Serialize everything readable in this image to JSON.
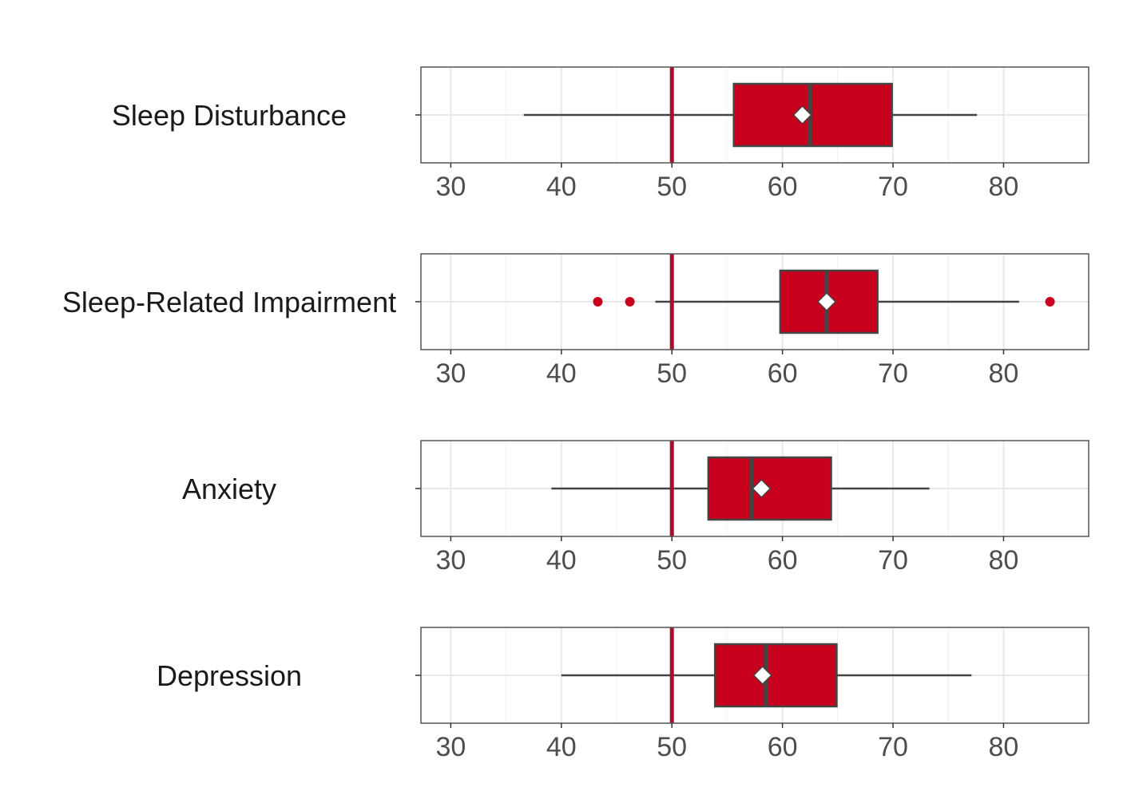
{
  "chart_data": {
    "type": "boxplot",
    "xlim": [
      27.3,
      87.7
    ],
    "x_ticks": [
      30,
      40,
      50,
      60,
      70,
      80
    ],
    "x_tick_labels": [
      "30",
      "40",
      "50",
      "60",
      "70",
      "80"
    ],
    "grid": true,
    "reference_line": {
      "x": 50
    },
    "fill_color": "#c8001e",
    "box_edge_color": "#444444",
    "mean_marker": "white-diamond",
    "panels": [
      {
        "label": "Sleep Disturbance",
        "box": {
          "whisker_low": 36.6,
          "q1": 55.6,
          "median": 62.5,
          "q3": 69.9,
          "whisker_high": 77.6
        },
        "mean": 61.8,
        "outliers": []
      },
      {
        "label": "Sleep-Related Impairment",
        "box": {
          "whisker_low": 48.5,
          "q1": 59.8,
          "median": 64.0,
          "q3": 68.6,
          "whisker_high": 81.4
        },
        "mean": 64.0,
        "outliers": [
          43.3,
          46.2,
          84.2
        ]
      },
      {
        "label": "Anxiety",
        "box": {
          "whisker_low": 39.1,
          "q1": 53.3,
          "median": 57.2,
          "q3": 64.4,
          "whisker_high": 73.3
        },
        "mean": 58.1,
        "outliers": []
      },
      {
        "label": "Depression",
        "box": {
          "whisker_low": 40.0,
          "q1": 53.9,
          "median": 58.5,
          "q3": 64.9,
          "whisker_high": 77.1
        },
        "mean": 58.2,
        "outliers": []
      }
    ]
  }
}
